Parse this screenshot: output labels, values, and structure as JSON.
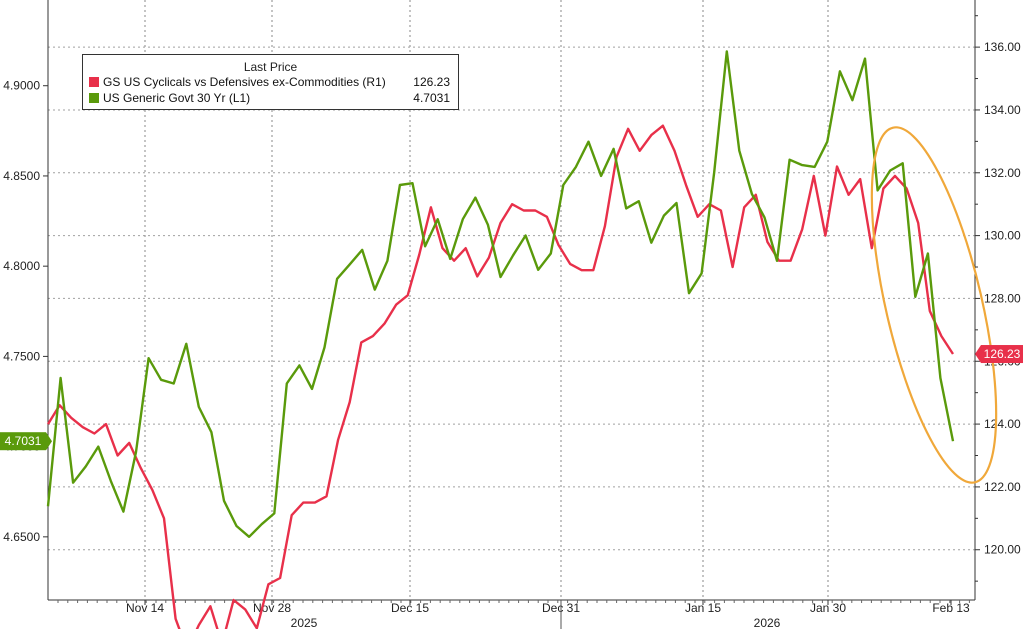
{
  "chart_data": {
    "type": "line",
    "legend": {
      "title": "Last Price",
      "placement": "top-left",
      "entries": [
        {
          "name": "GS US Cyclicals vs Defensives ex-Commodities  (R1)",
          "value": "126.23",
          "color": "#e8304a"
        },
        {
          "name": "US Generic Govt 30 Yr  (L1)",
          "value": "4.7031",
          "color": "#5a9a0b"
        }
      ]
    },
    "left_axis": {
      "ylim": [
        4.615,
        4.9475
      ],
      "ticks": [
        "4.6500",
        "4.7000",
        "4.7500",
        "4.8000",
        "4.8500",
        "4.9000"
      ]
    },
    "right_axis": {
      "ylim": [
        118.4,
        137.5
      ],
      "ticks": [
        "120.00",
        "122.00",
        "124.00",
        "126.00",
        "128.00",
        "130.00",
        "132.00",
        "134.00",
        "136.00"
      ]
    },
    "x_axis": {
      "ticks": [
        "Nov 14",
        "Nov 28",
        "Dec 15",
        "Dec 31",
        "Jan 15",
        "Jan 30",
        "Feb 13"
      ],
      "year_labels": [
        "2025",
        "2026"
      ]
    },
    "last_value_labels": {
      "left": "4.7031",
      "right": "126.23"
    },
    "grid": true,
    "annotation": {
      "type": "ellipse",
      "color": "#f0a83a"
    },
    "series": [
      {
        "name": "GS US Cyclicals vs Defensives ex-Commodities  (R1)",
        "axis": "right",
        "color": "#e8304a",
        "values": [
          124.0,
          124.6,
          124.2,
          123.9,
          123.7,
          124.0,
          123.0,
          123.4,
          122.6,
          121.9,
          121.0,
          117.8,
          116.8,
          117.6,
          118.2,
          117.0,
          118.4,
          118.1,
          117.5,
          118.9,
          119.1,
          121.1,
          121.5,
          121.5,
          121.7,
          123.5,
          124.7,
          126.6,
          126.8,
          127.2,
          127.8,
          128.1,
          129.4,
          130.9,
          129.6,
          129.2,
          129.6,
          128.7,
          129.3,
          130.4,
          131.0,
          130.8,
          130.8,
          130.6,
          129.7,
          129.1,
          128.9,
          128.9,
          130.3,
          132.5,
          133.4,
          132.7,
          133.2,
          133.5,
          132.7,
          131.6,
          130.6,
          131.0,
          130.8,
          129.0,
          130.9,
          131.3,
          129.8,
          129.2,
          129.2,
          130.2,
          131.9,
          130.0,
          132.2,
          131.3,
          131.8,
          129.6,
          131.5,
          131.9,
          131.5,
          130.4,
          127.6,
          126.8,
          126.23
        ]
      },
      {
        "name": "US Generic Govt 30 Yr  (L1)",
        "axis": "left",
        "color": "#5a9a0b",
        "values": [
          4.667,
          4.738,
          4.68,
          4.689,
          4.7,
          4.681,
          4.664,
          4.697,
          4.749,
          4.737,
          4.735,
          4.757,
          4.722,
          4.708,
          4.67,
          4.656,
          4.65,
          4.657,
          4.663,
          4.735,
          4.745,
          4.732,
          4.755,
          4.793,
          4.801,
          4.809,
          4.787,
          4.803,
          4.845,
          4.846,
          4.811,
          4.826,
          4.804,
          4.826,
          4.838,
          4.823,
          4.794,
          4.806,
          4.817,
          4.798,
          4.807,
          4.845,
          4.855,
          4.869,
          4.85,
          4.865,
          4.832,
          4.836,
          4.813,
          4.828,
          4.835,
          4.785,
          4.796,
          4.852,
          4.919,
          4.864,
          4.84,
          4.827,
          4.803,
          4.859,
          4.856,
          4.855,
          4.869,
          4.908,
          4.892,
          4.915,
          4.842,
          4.853,
          4.857,
          4.783,
          4.807,
          4.738,
          4.703
        ]
      }
    ]
  }
}
